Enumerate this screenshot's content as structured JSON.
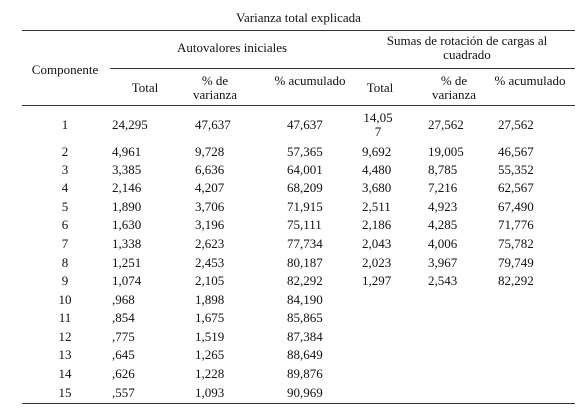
{
  "table": {
    "title": "Varianza total explicada",
    "row_header": "Componente",
    "groups": [
      "Autovalores iniciales",
      "Sumas de rotación de cargas al cuadrado"
    ],
    "columns": [
      "Total",
      "% de varianza",
      "% acumulado",
      "Total",
      "% de varianza",
      "% acumulado"
    ],
    "rows": [
      [
        "1",
        "24,295",
        "47,637",
        "47,637",
        "14,057",
        "27,562",
        "27,562"
      ],
      [
        "2",
        "4,961",
        "9,728",
        "57,365",
        "9,692",
        "19,005",
        "46,567"
      ],
      [
        "3",
        "3,385",
        "6,636",
        "64,001",
        "4,480",
        "8,785",
        "55,352"
      ],
      [
        "4",
        "2,146",
        "4,207",
        "68,209",
        "3,680",
        "7,216",
        "62,567"
      ],
      [
        "5",
        "1,890",
        "3,706",
        "71,915",
        "2,511",
        "4,923",
        "67,490"
      ],
      [
        "6",
        "1,630",
        "3,196",
        "75,111",
        "2,186",
        "4,285",
        "71,776"
      ],
      [
        "7",
        "1,338",
        "2,623",
        "77,734",
        "2,043",
        "4,006",
        "75,782"
      ],
      [
        "8",
        "1,251",
        "2,453",
        "80,187",
        "2,023",
        "3,967",
        "79,749"
      ],
      [
        "9",
        "1,074",
        "2,105",
        "82,292",
        "1,297",
        "2,543",
        "82,292"
      ],
      [
        "10",
        ",968",
        "1,898",
        "84,190"
      ],
      [
        "11",
        ",854",
        "1,675",
        "85,865"
      ],
      [
        "12",
        ",775",
        "1,519",
        "87,384"
      ],
      [
        "13",
        ",645",
        "1,265",
        "88,649"
      ],
      [
        "14",
        ",626",
        "1,228",
        "89,876"
      ],
      [
        "15",
        ",557",
        "1,093",
        "90,969"
      ]
    ]
  }
}
